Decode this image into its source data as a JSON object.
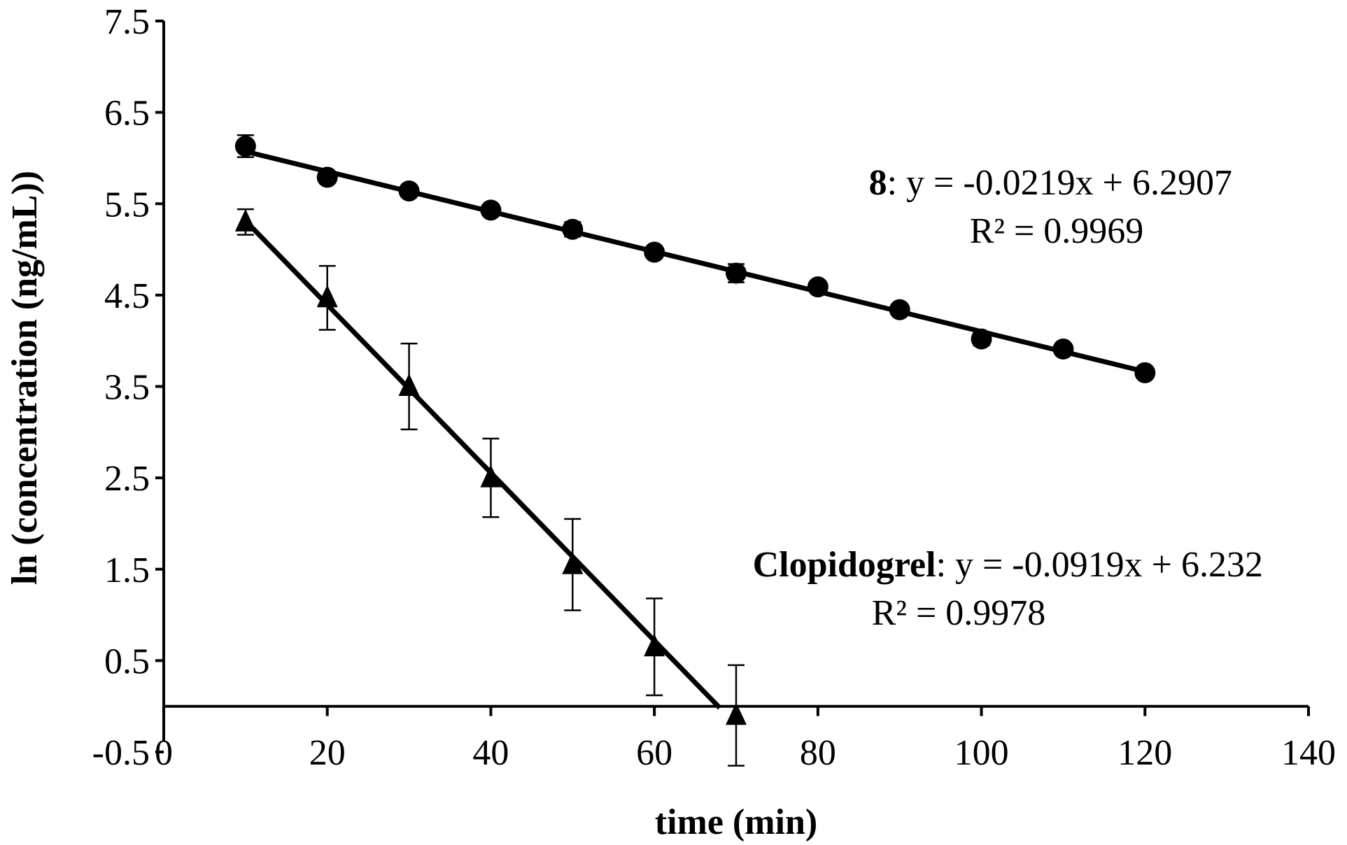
{
  "chart_data": {
    "type": "scatter",
    "title": "",
    "xlabel": "time (min)",
    "ylabel": "ln (concentration (ng/mL))",
    "xlim": [
      0,
      140
    ],
    "ylim": [
      -0.5,
      7.5
    ],
    "x_ticks": [
      0,
      20,
      40,
      60,
      80,
      100,
      120,
      140
    ],
    "y_ticks": [
      -0.5,
      0.5,
      1.5,
      2.5,
      3.5,
      4.5,
      5.5,
      6.5,
      7.5
    ],
    "x_tick_labels": [
      "0",
      "20",
      "40",
      "60",
      "80",
      "100",
      "120",
      "140"
    ],
    "y_tick_labels": [
      "-0.5",
      "0.5",
      "1.5",
      "2.5",
      "3.5",
      "4.5",
      "5.5",
      "6.5",
      "7.5"
    ],
    "grid": false,
    "series": [
      {
        "name": "8",
        "marker": "circle",
        "x": [
          10,
          20,
          30,
          40,
          50,
          60,
          70,
          80,
          90,
          100,
          110,
          120
        ],
        "y": [
          6.13,
          5.79,
          5.64,
          5.43,
          5.22,
          4.97,
          4.74,
          4.59,
          4.34,
          4.02,
          3.91,
          3.65
        ],
        "error": [
          0.12,
          0.06,
          0.05,
          0.05,
          0.08,
          0.04,
          0.1,
          0.04,
          0.05,
          0.07,
          0.05,
          0.04
        ],
        "fit": {
          "slope": -0.0219,
          "intercept": 6.2907,
          "x_range": [
            10,
            120
          ]
        },
        "equation_label": "8",
        "equation_text": ": y = -0.0219x + 6.2907",
        "r2_text": "R² = 0.9969"
      },
      {
        "name": "Clopidogrel",
        "marker": "triangle",
        "x": [
          10,
          20,
          30,
          40,
          50,
          60,
          70
        ],
        "y": [
          5.3,
          4.47,
          3.5,
          2.5,
          1.55,
          0.65,
          -0.1
        ],
        "error": [
          0.14,
          0.35,
          0.47,
          0.43,
          0.5,
          0.53,
          0.55
        ],
        "fit": {
          "slope": -0.0919,
          "intercept": 6.232,
          "x_range": [
            10,
            68
          ]
        },
        "equation_label": "Clopidogrel",
        "equation_text": ": y = -0.0919x + 6.232",
        "r2_text": "R² = 0.9978"
      }
    ]
  }
}
